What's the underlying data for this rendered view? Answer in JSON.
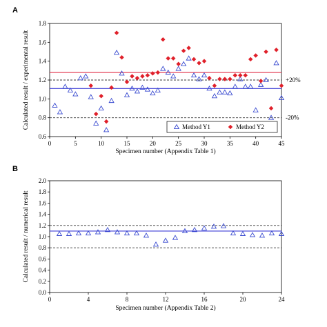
{
  "chart_data": [
    {
      "panel": "A",
      "type": "scatter",
      "xlabel": "Specimen number (Appendix Table 1)",
      "ylabel": "Calculated result / experimental result",
      "xlim": [
        0,
        45
      ],
      "ylim": [
        0.6,
        1.8
      ],
      "xticks": [
        0,
        5,
        10,
        15,
        20,
        25,
        30,
        35,
        40,
        45
      ],
      "yticks": [
        0.6,
        0.8,
        1.0,
        1.2,
        1.4,
        1.6,
        1.8
      ],
      "reference_lines": [
        {
          "y": 1.2,
          "style": "dashed",
          "color": "#333333",
          "label": "+20%"
        },
        {
          "y": 0.8,
          "style": "dashed",
          "color": "#333333",
          "label": "-20%"
        },
        {
          "y": 1.11,
          "style": "solid",
          "color": "#3a3ad6"
        },
        {
          "y": 1.28,
          "style": "solid",
          "color": "#e0304a"
        }
      ],
      "legend": {
        "placement": "bottom-right"
      },
      "series": [
        {
          "name": "Method Y1",
          "marker": "open-triangle",
          "color": "#3a4bd0",
          "x": [
            1,
            2,
            3,
            4,
            5,
            6,
            7,
            8,
            9,
            10,
            11,
            12,
            13,
            14,
            15,
            16,
            17,
            18,
            19,
            20,
            21,
            22,
            23,
            24,
            25,
            26,
            27,
            28,
            29,
            30,
            31,
            32,
            33,
            34,
            35,
            36,
            37,
            38,
            39,
            40,
            41,
            42,
            43,
            44,
            45
          ],
          "y": [
            0.93,
            0.86,
            1.13,
            1.09,
            1.05,
            1.22,
            1.24,
            1.02,
            0.74,
            0.9,
            0.67,
            0.98,
            1.49,
            1.27,
            1.04,
            1.11,
            1.08,
            1.12,
            1.1,
            1.06,
            1.09,
            1.32,
            1.28,
            1.24,
            1.32,
            1.37,
            1.43,
            1.25,
            1.21,
            1.25,
            1.11,
            1.03,
            1.07,
            1.07,
            1.06,
            1.13,
            1.21,
            1.13,
            1.13,
            0.88,
            1.15,
            1.2,
            0.8,
            1.38,
            1.01
          ]
        },
        {
          "name": "Method Y2",
          "marker": "filled-diamond",
          "color": "#e0202a",
          "x": [
            8,
            9,
            10,
            11,
            12,
            13,
            14,
            15,
            16,
            17,
            18,
            19,
            20,
            21,
            22,
            23,
            24,
            25,
            26,
            27,
            28,
            29,
            30,
            31,
            32,
            33,
            34,
            35,
            36,
            37,
            38,
            39,
            40,
            41,
            42,
            43,
            44,
            45
          ],
          "y": [
            1.14,
            0.84,
            1.03,
            0.76,
            1.12,
            1.7,
            1.44,
            1.18,
            1.24,
            1.22,
            1.24,
            1.25,
            1.27,
            1.28,
            1.63,
            1.43,
            1.43,
            1.37,
            1.51,
            1.54,
            1.42,
            1.38,
            1.4,
            1.22,
            1.14,
            1.21,
            1.21,
            1.21,
            1.25,
            1.25,
            1.25,
            1.42,
            1.46,
            1.19,
            1.5,
            0.9,
            1.52,
            1.14
          ]
        }
      ]
    },
    {
      "panel": "B",
      "type": "scatter",
      "xlabel": "Specimen number (Appendix Table 2)",
      "ylabel": "Calculated result / numerical result",
      "xlim": [
        0,
        24
      ],
      "ylim": [
        0.0,
        2.0
      ],
      "xticks": [
        0,
        4,
        8,
        12,
        16,
        20,
        24
      ],
      "yticks": [
        0.0,
        0.2,
        0.4,
        0.6,
        0.8,
        1.0,
        1.2,
        1.4,
        1.6,
        1.8,
        2.0
      ],
      "reference_lines": [
        {
          "y": 1.2,
          "style": "dashed",
          "color": "#333333"
        },
        {
          "y": 0.8,
          "style": "dashed",
          "color": "#333333"
        },
        {
          "y": 1.1,
          "style": "solid",
          "color": "#3a3ad6"
        }
      ],
      "series": [
        {
          "marker": "open-triangle",
          "color": "#3a4bd0",
          "x": [
            1,
            2,
            3,
            4,
            5,
            6,
            7,
            8,
            9,
            10,
            11,
            12,
            13,
            14,
            15,
            16,
            17,
            18,
            19,
            20,
            21,
            22,
            23,
            24
          ],
          "y": [
            1.05,
            1.05,
            1.06,
            1.06,
            1.08,
            1.12,
            1.08,
            1.06,
            1.06,
            1.02,
            0.86,
            0.93,
            0.98,
            1.1,
            1.12,
            1.15,
            1.18,
            1.19,
            1.06,
            1.05,
            1.03,
            1.02,
            1.06,
            1.05
          ]
        }
      ]
    }
  ]
}
